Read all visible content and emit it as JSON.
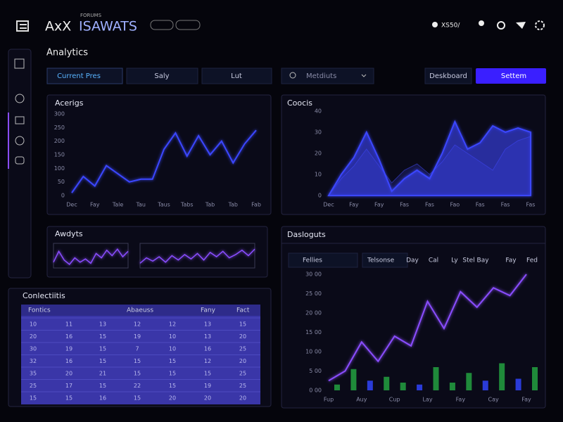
{
  "header": {
    "logo": "AxX",
    "brand_sup": "FORUMS",
    "brand": "ISAWATS",
    "user": "XS50/"
  },
  "page_title": "Analytics",
  "tabs": [
    "Current Pres",
    "Saly",
    "Lut"
  ],
  "search": "Metdiuts",
  "buttons": [
    "Deskboard",
    "Settem"
  ],
  "filters": [
    "Fellies",
    "Telsonse"
  ],
  "periods": [
    "Day",
    "Cal",
    "Ly",
    "Stel Bay",
    "Fay",
    "Fed"
  ],
  "chart_data": [
    {
      "type": "line",
      "title": "Acerigs",
      "color": "#3b46ff",
      "grid": false,
      "categories": [
        "Dec",
        null,
        "Fay",
        null,
        "Tale",
        null,
        "Tau",
        null,
        "Taus",
        null,
        "Tabs",
        null,
        "Tab",
        null,
        "Tab",
        null,
        "Fab"
      ],
      "values": [
        10,
        70,
        35,
        110,
        80,
        50,
        60,
        60,
        170,
        230,
        145,
        220,
        150,
        200,
        120,
        190,
        240
      ],
      "ylim": [
        0,
        300
      ],
      "yticks": [
        0,
        50,
        100,
        150,
        200,
        250,
        300
      ]
    },
    {
      "type": "area",
      "title": "Coocis",
      "grid": false,
      "categories": [
        "Dec",
        null,
        "Fay",
        null,
        "Fay",
        null,
        "Fas",
        null,
        "Fas",
        null,
        "Fao",
        null,
        "Fas",
        null,
        "Fas",
        null,
        "Fas"
      ],
      "series": [
        {
          "color": "#3b46ff",
          "values": [
            0,
            10,
            18,
            30,
            17,
            2,
            8,
            12,
            8,
            20,
            35,
            22,
            25,
            33,
            30,
            32,
            30
          ]
        },
        {
          "color": "#2a2f9a",
          "values": [
            0,
            8,
            14,
            22,
            14,
            6,
            12,
            15,
            10,
            16,
            24,
            20,
            16,
            12,
            22,
            26,
            28
          ]
        }
      ],
      "ylim": [
        0,
        40
      ],
      "yticks": [
        0,
        10,
        20,
        30,
        40
      ]
    },
    {
      "type": "sparklines",
      "title": "Awdyts",
      "ylim": [
        0,
        100
      ],
      "series": [
        {
          "color": "#8a4dff",
          "values": [
            20,
            70,
            30,
            10,
            40,
            20,
            35,
            15,
            60,
            40,
            75,
            50,
            80,
            45,
            70
          ]
        },
        {
          "color": "#8a4dff",
          "values": [
            15,
            40,
            25,
            45,
            20,
            50,
            30,
            55,
            35,
            60,
            30,
            65,
            45,
            70,
            40,
            55,
            75,
            50,
            80
          ]
        }
      ]
    },
    {
      "type": "combo",
      "title": "Dasloguts",
      "categories": [
        "Fup",
        null,
        "Auy",
        null,
        "Cup",
        null,
        "Lay",
        null,
        "Fay",
        null,
        "Cay",
        null,
        "Fay"
      ],
      "values": [
        250,
        500,
        1250,
        750,
        1400,
        1150,
        2300,
        1600,
        2550,
        2150,
        2650,
        2450,
        3000
      ],
      "color": "#8a4dff",
      "bars": [
        150,
        550,
        250,
        350,
        200,
        150,
        600,
        200,
        450,
        250,
        700,
        300,
        600
      ],
      "bar_colors": [
        "#1f8a3a",
        "#1f8a3a",
        "#2a3bd8",
        "#1f8a3a",
        "#1f8a3a",
        "#2a3bd8",
        "#1f8a3a",
        "#1f8a3a",
        "#1f8a3a",
        "#2a3bd8",
        "#1f8a3a",
        "#2a3bd8",
        "#1f8a3a"
      ],
      "ylim": [
        0,
        3000
      ],
      "yticks": [
        {
          "value": 0,
          "label": "0 00"
        },
        {
          "value": 500,
          "label": "5 00"
        },
        {
          "value": 1000,
          "label": "10 00"
        },
        {
          "value": 1500,
          "label": "15 00"
        },
        {
          "value": 2000,
          "label": "20 00"
        },
        {
          "value": 2500,
          "label": "25 00"
        },
        {
          "value": 3000,
          "label": "30 00"
        }
      ]
    }
  ],
  "table": {
    "title": "Conlectiitis",
    "headers": [
      "Fontics",
      "Abaeuss",
      "Fany",
      "Fact"
    ],
    "rows": [
      [
        10,
        11,
        13,
        12,
        12,
        13,
        15
      ],
      [
        20,
        16,
        15,
        19,
        10,
        13,
        20
      ],
      [
        30,
        19,
        15,
        7,
        10,
        16,
        25
      ],
      [
        32,
        16,
        15,
        15,
        15,
        12,
        20
      ],
      [
        35,
        20,
        21,
        15,
        15,
        15,
        25
      ],
      [
        25,
        17,
        15,
        22,
        15,
        19,
        25
      ],
      [
        15,
        15,
        16,
        15,
        20,
        20,
        20
      ]
    ]
  }
}
